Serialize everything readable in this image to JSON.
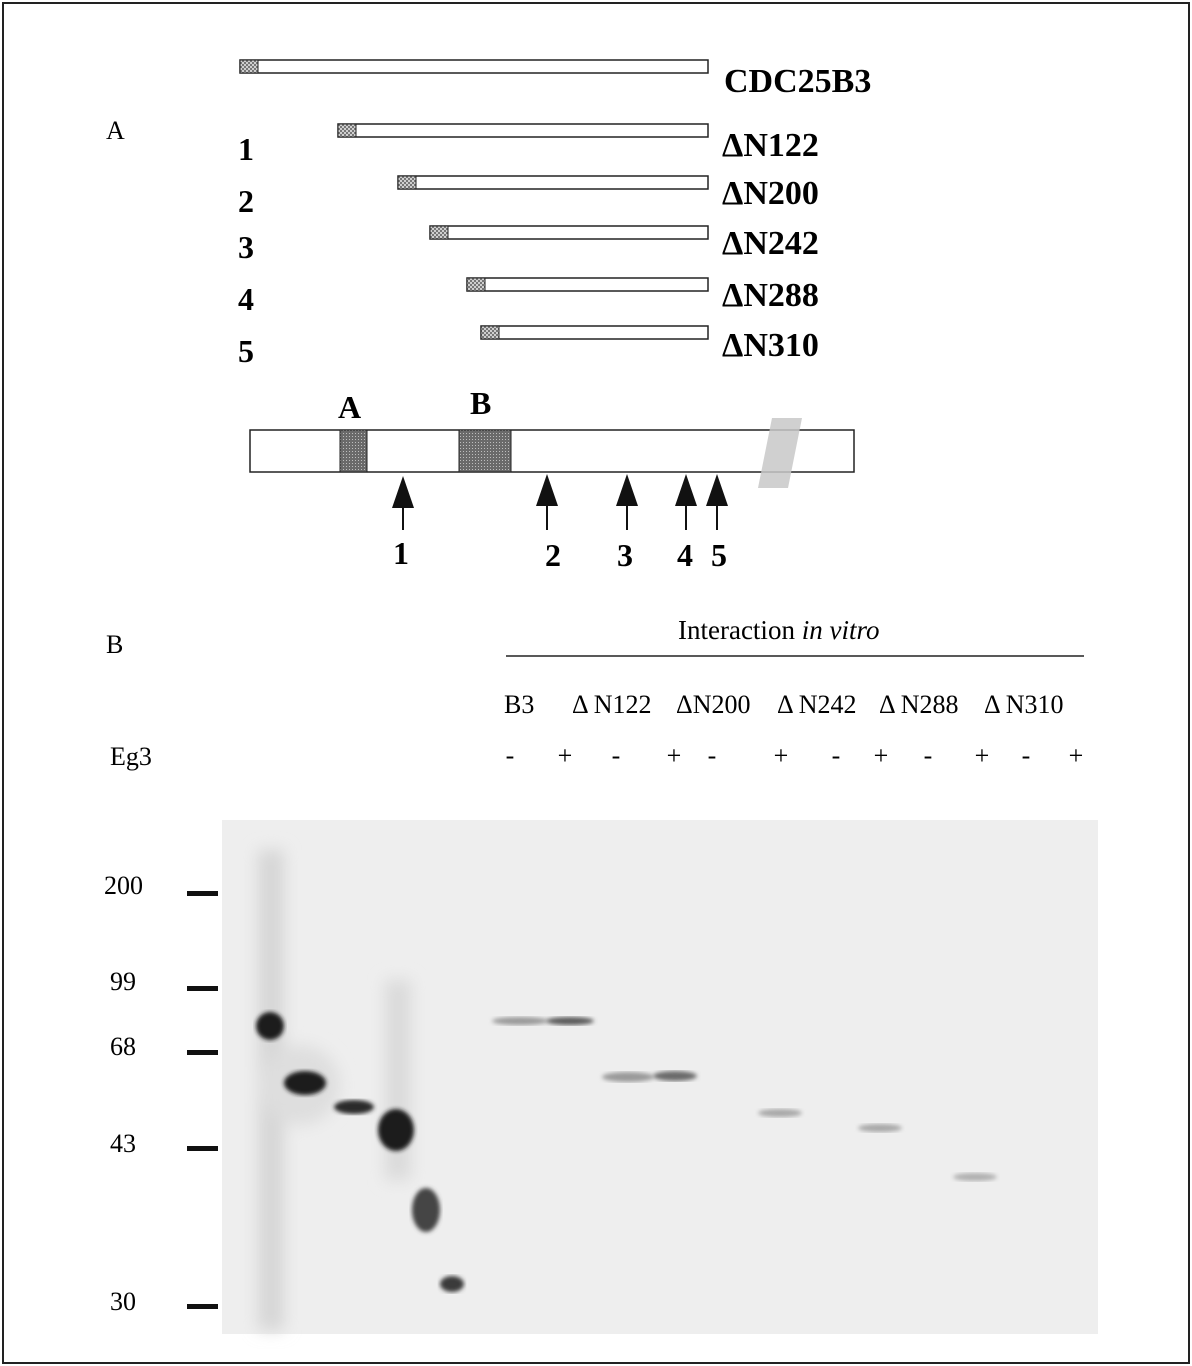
{
  "panel_a": {
    "panel_label": "A",
    "constructs": [
      {
        "num": "",
        "label": "CDC25B3"
      },
      {
        "num": "1",
        "label": "ΔN122"
      },
      {
        "num": "2",
        "label": "ΔN200"
      },
      {
        "num": "3",
        "label": "ΔN242"
      },
      {
        "num": "4",
        "label": "ΔN288"
      },
      {
        "num": "5",
        "label": "ΔN310"
      }
    ],
    "domain_a_label": "A",
    "domain_b_label": "B",
    "arrows": [
      "1",
      "2",
      "3",
      "4",
      "5"
    ]
  },
  "panel_b": {
    "panel_label": "B",
    "header": "Interaction ",
    "header_italic": "in vitro",
    "lane_groups": [
      "B3",
      "Δ N122",
      "ΔN200",
      "Δ N242",
      "Δ N288",
      "Δ N310"
    ],
    "eg3_label": "Eg3",
    "eg3_signs": [
      "-",
      "+",
      "-",
      "+",
      "-",
      "+",
      "-",
      "+",
      "-",
      "+",
      "-",
      "+"
    ],
    "markers": [
      "200",
      "99",
      "68",
      "43",
      "30"
    ]
  }
}
